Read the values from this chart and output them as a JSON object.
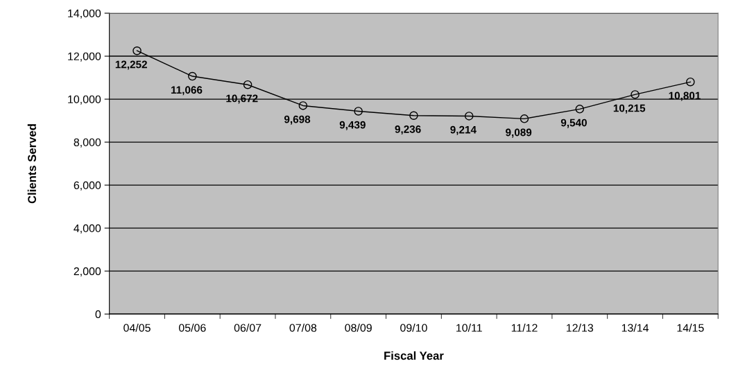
{
  "chart_data": {
    "type": "line",
    "xlabel": "Fiscal Year",
    "ylabel": "Clients Served",
    "categories": [
      "04/05",
      "05/06",
      "06/07",
      "07/08",
      "08/09",
      "09/10",
      "10/11",
      "11/12",
      "12/13",
      "13/14",
      "14/15"
    ],
    "series": [
      {
        "color": "#000000",
        "values": [
          12252,
          11066,
          10672,
          9698,
          9439,
          9236,
          9214,
          9089,
          9540,
          10215,
          10801
        ],
        "value_labels": [
          "12,252",
          "11,066",
          "10,672",
          "9,698",
          "9,439",
          "9,236",
          "9,214",
          "9,089",
          "9,540",
          "10,215",
          "10,801"
        ]
      }
    ],
    "ylim": [
      0,
      14000
    ],
    "yticks": [
      0,
      {
        "value": 2000,
        "label": "2,000"
      },
      {
        "value": 4000,
        "label": "4,000"
      },
      {
        "value": 6000,
        "label": "6,000"
      },
      {
        "value": 8000,
        "label": "8,000"
      },
      {
        "value": 10000,
        "label": "10,000"
      },
      {
        "value": 12000,
        "label": "12,000"
      },
      {
        "value": 14000,
        "label": "14,000"
      }
    ],
    "grid": "y",
    "marker": "circle",
    "line_style": "solid"
  }
}
